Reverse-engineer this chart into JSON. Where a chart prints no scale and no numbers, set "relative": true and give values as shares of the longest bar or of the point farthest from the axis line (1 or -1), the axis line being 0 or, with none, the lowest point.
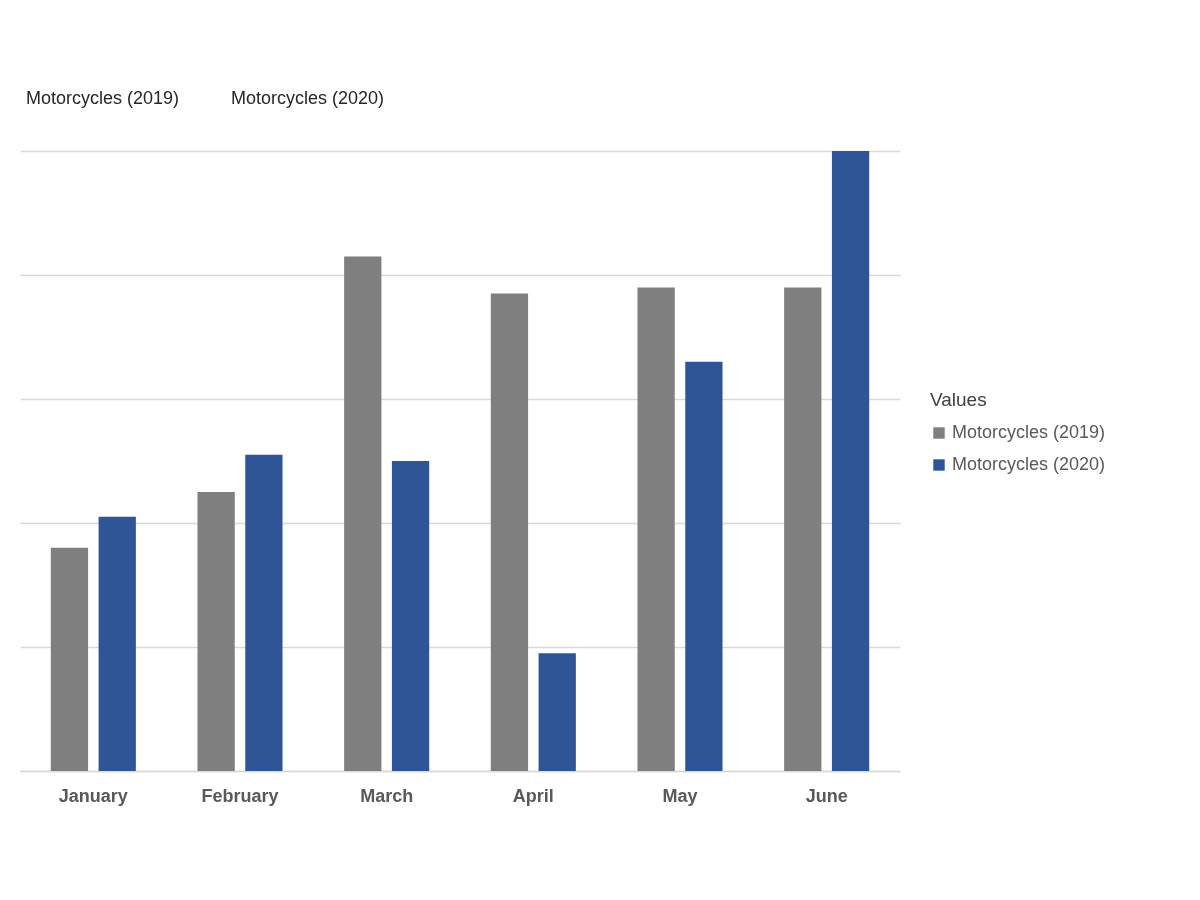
{
  "chart_data": {
    "type": "bar",
    "relative": true,
    "categories": [
      "January",
      "February",
      "March",
      "April",
      "May",
      "June"
    ],
    "series": [
      {
        "name": "Motorcycles (2019)",
        "color": "#7f7f7f",
        "values": [
          0.36,
          0.45,
          0.83,
          0.77,
          0.78,
          0.78
        ]
      },
      {
        "name": "Motorcycles (2020)",
        "color": "#2f5597",
        "values": [
          0.41,
          0.51,
          0.5,
          0.19,
          0.66,
          1
        ]
      }
    ],
    "legend_title": "Values",
    "legend": "right",
    "grid": "y",
    "annotations": [
      "Motorcycles (2019)",
      "Motorcycles (2020)"
    ]
  }
}
